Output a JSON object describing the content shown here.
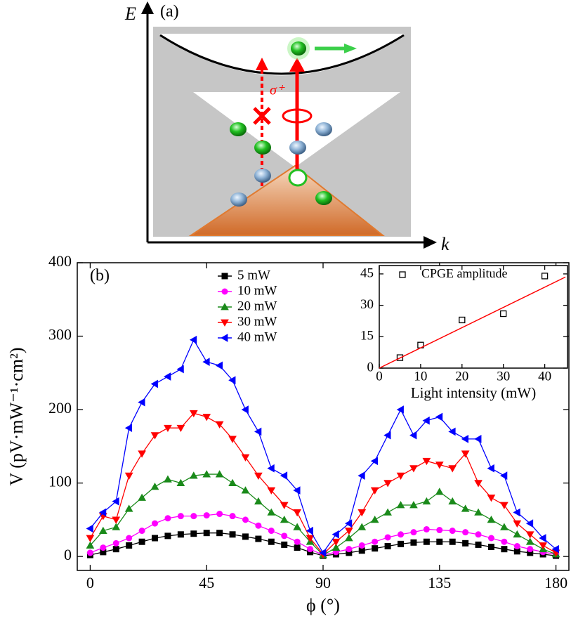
{
  "diagram": {
    "y_axis": "E",
    "panel_label": "(a)",
    "x_axis": "k",
    "annotation": "σ⁺"
  },
  "chart_data": [
    {
      "type": "line",
      "panel_label": "(b)",
      "x_label": "ϕ (°)",
      "y_label": "V (pV·mW⁻¹·cm²)",
      "xlim": [
        -5,
        185
      ],
      "ylim": [
        -19,
        400
      ],
      "xticks": [
        0,
        45,
        90,
        135,
        180
      ],
      "yticks": [
        0,
        100,
        200,
        300,
        400
      ],
      "x": [
        0,
        5,
        10,
        15,
        20,
        25,
        30,
        35,
        40,
        45,
        50,
        55,
        60,
        65,
        70,
        75,
        80,
        85,
        90,
        95,
        100,
        105,
        110,
        115,
        120,
        125,
        130,
        135,
        140,
        145,
        150,
        155,
        160,
        165,
        170,
        175,
        180
      ],
      "series": [
        {
          "name": "5 mW",
          "color": "#000000",
          "marker": "square",
          "values": [
            2,
            6,
            10,
            15,
            20,
            25,
            28,
            30,
            31,
            32,
            32,
            30,
            27,
            24,
            20,
            16,
            12,
            6,
            1,
            3,
            5,
            8,
            11,
            14,
            17,
            19,
            20,
            20,
            20,
            18,
            16,
            13,
            10,
            7,
            5,
            3,
            1
          ]
        },
        {
          "name": "10 mW",
          "color": "#ff00ff",
          "marker": "circle",
          "values": [
            5,
            12,
            18,
            25,
            35,
            45,
            52,
            55,
            55,
            56,
            58,
            55,
            50,
            42,
            35,
            28,
            20,
            10,
            2,
            6,
            10,
            15,
            20,
            26,
            30,
            33,
            37,
            36,
            35,
            33,
            30,
            25,
            20,
            14,
            10,
            6,
            3
          ]
        },
        {
          "name": "20 mW",
          "color": "#1a8a1a",
          "marker": "triangle-up",
          "values": [
            15,
            35,
            40,
            65,
            80,
            95,
            105,
            100,
            110,
            112,
            112,
            100,
            90,
            75,
            60,
            50,
            40,
            20,
            2,
            12,
            25,
            40,
            50,
            60,
            70,
            70,
            75,
            88,
            75,
            65,
            60,
            50,
            40,
            30,
            20,
            10,
            3
          ]
        },
        {
          "name": "30 mW",
          "color": "#ff0000",
          "marker": "triangle-down",
          "values": [
            25,
            55,
            50,
            110,
            140,
            165,
            175,
            175,
            195,
            190,
            180,
            160,
            135,
            110,
            90,
            70,
            60,
            25,
            3,
            20,
            35,
            60,
            90,
            100,
            110,
            120,
            130,
            125,
            120,
            140,
            100,
            80,
            70,
            45,
            30,
            15,
            5
          ]
        },
        {
          "name": "40 mW",
          "color": "#0000ff",
          "marker": "triangle-left",
          "values": [
            38,
            60,
            75,
            175,
            210,
            235,
            245,
            255,
            295,
            265,
            260,
            240,
            200,
            170,
            120,
            110,
            90,
            35,
            5,
            30,
            45,
            110,
            130,
            165,
            200,
            165,
            185,
            190,
            170,
            160,
            160,
            120,
            110,
            60,
            45,
            25,
            10
          ]
        }
      ]
    },
    {
      "type": "scatter",
      "x_label": "Light intensity (mW)",
      "xlim": [
        0,
        45.5
      ],
      "ylim": [
        0,
        49
      ],
      "xticks": [
        0,
        10,
        20,
        30,
        40
      ],
      "yticks": [
        0,
        15,
        30,
        45
      ],
      "series": [
        {
          "name": "CPGE amplitude",
          "color": "#000000",
          "marker": "open-square",
          "x": [
            5,
            10,
            20,
            30,
            40
          ],
          "values": [
            5,
            11,
            23,
            26,
            44
          ]
        },
        {
          "color": "#ff0000",
          "line": true,
          "x": [
            0,
            45
          ],
          "values": [
            0,
            43.5
          ]
        }
      ]
    }
  ]
}
